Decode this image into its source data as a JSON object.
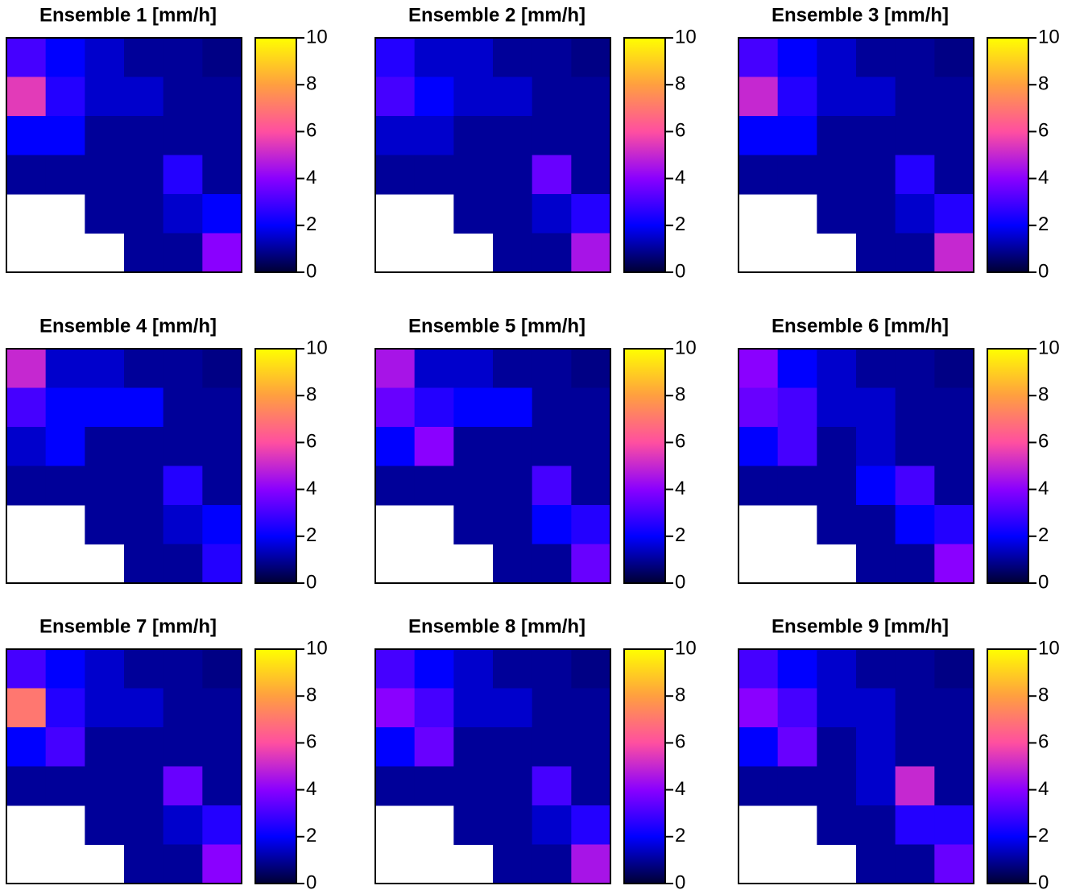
{
  "colormap": [
    "#000033",
    "#0000ff",
    "#8a00ff",
    "#ff4fa0",
    "#ff9f40",
    "#ffff00"
  ],
  "chart_data": [
    {
      "type": "heatmap",
      "title": "Ensemble 1 [mm/h]",
      "zlim": [
        0,
        10
      ],
      "zticks": [
        0,
        2,
        4,
        6,
        8,
        10
      ],
      "z": [
        [
          3,
          2,
          1.5,
          1,
          1,
          0.8
        ],
        [
          5.5,
          2.5,
          1.5,
          1.5,
          1,
          1
        ],
        [
          2,
          2,
          1,
          1,
          1,
          1
        ],
        [
          1,
          1,
          1,
          1,
          2.5,
          1
        ],
        [
          null,
          null,
          1,
          1,
          1.5,
          2
        ],
        [
          null,
          null,
          null,
          1,
          1,
          4
        ]
      ]
    },
    {
      "type": "heatmap",
      "title": "Ensemble 2 [mm/h]",
      "zlim": [
        0,
        10
      ],
      "zticks": [
        0,
        2,
        4,
        6,
        8,
        10
      ],
      "z": [
        [
          2.5,
          1.5,
          1.5,
          1,
          1,
          0.8
        ],
        [
          3,
          2,
          1.5,
          1.5,
          1,
          1
        ],
        [
          1.5,
          1.5,
          1,
          1,
          1,
          1
        ],
        [
          1,
          1,
          1,
          1,
          3.5,
          1
        ],
        [
          null,
          null,
          1,
          1,
          1.5,
          2.5
        ],
        [
          null,
          null,
          null,
          1,
          1,
          4.5
        ]
      ]
    },
    {
      "type": "heatmap",
      "title": "Ensemble 3 [mm/h]",
      "zlim": [
        0,
        10
      ],
      "zticks": [
        0,
        2,
        4,
        6,
        8,
        10
      ],
      "z": [
        [
          3,
          2,
          1.5,
          1,
          1,
          0.8
        ],
        [
          5,
          2.5,
          1.5,
          1.5,
          1,
          1
        ],
        [
          2,
          2,
          1,
          1,
          1,
          1
        ],
        [
          1,
          1,
          1,
          1,
          2.5,
          1
        ],
        [
          null,
          null,
          1,
          1,
          1.5,
          2.5
        ],
        [
          null,
          null,
          null,
          1,
          1,
          5
        ]
      ]
    },
    {
      "type": "heatmap",
      "title": "Ensemble 4 [mm/h]",
      "zlim": [
        0,
        10
      ],
      "zticks": [
        0,
        2,
        4,
        6,
        8,
        10
      ],
      "z": [
        [
          5,
          1.5,
          1.5,
          1,
          1,
          0.8
        ],
        [
          3,
          2,
          2,
          2,
          1,
          1
        ],
        [
          1.5,
          2,
          1,
          1,
          1,
          1
        ],
        [
          1,
          1,
          1,
          1,
          2.5,
          1
        ],
        [
          null,
          null,
          1,
          1,
          1.5,
          2
        ],
        [
          null,
          null,
          null,
          1,
          1,
          2.5
        ]
      ]
    },
    {
      "type": "heatmap",
      "title": "Ensemble 5 [mm/h]",
      "zlim": [
        0,
        10
      ],
      "zticks": [
        0,
        2,
        4,
        6,
        8,
        10
      ],
      "z": [
        [
          4.5,
          1.5,
          1.5,
          1,
          1,
          0.8
        ],
        [
          3.5,
          2.5,
          2,
          2,
          1,
          1
        ],
        [
          2,
          4,
          1,
          1,
          1,
          1
        ],
        [
          1,
          1,
          1,
          1,
          3,
          1
        ],
        [
          null,
          null,
          1,
          1,
          2,
          2.5
        ],
        [
          null,
          null,
          null,
          1,
          1,
          3.5
        ]
      ]
    },
    {
      "type": "heatmap",
      "title": "Ensemble 6 [mm/h]",
      "zlim": [
        0,
        10
      ],
      "zticks": [
        0,
        2,
        4,
        6,
        8,
        10
      ],
      "z": [
        [
          4,
          2,
          1.5,
          1,
          1,
          0.8
        ],
        [
          3.5,
          3,
          1.5,
          1.5,
          1,
          1
        ],
        [
          2,
          3,
          1,
          1.5,
          1,
          1
        ],
        [
          1,
          1,
          1,
          2,
          3,
          1
        ],
        [
          null,
          null,
          1,
          1,
          2,
          2.5
        ],
        [
          null,
          null,
          null,
          1,
          1,
          4
        ]
      ]
    },
    {
      "type": "heatmap",
      "title": "Ensemble 7 [mm/h]",
      "zlim": [
        0,
        10
      ],
      "zticks": [
        0,
        2,
        4,
        6,
        8,
        10
      ],
      "z": [
        [
          3,
          2,
          1.5,
          1,
          1,
          0.8
        ],
        [
          7,
          2.5,
          1.5,
          1.5,
          1,
          1
        ],
        [
          2,
          3,
          1,
          1,
          1,
          1
        ],
        [
          1,
          1,
          1,
          1,
          3.5,
          1
        ],
        [
          null,
          null,
          1,
          1,
          1.5,
          2.5
        ],
        [
          null,
          null,
          null,
          1,
          1,
          4
        ]
      ]
    },
    {
      "type": "heatmap",
      "title": "Ensemble 8 [mm/h]",
      "zlim": [
        0,
        10
      ],
      "zticks": [
        0,
        2,
        4,
        6,
        8,
        10
      ],
      "z": [
        [
          3,
          2,
          1.5,
          1,
          1,
          0.8
        ],
        [
          4,
          3,
          1.5,
          1.5,
          1,
          1
        ],
        [
          2,
          3.5,
          1,
          1,
          1,
          1
        ],
        [
          1,
          1,
          1,
          1,
          3,
          1
        ],
        [
          null,
          null,
          1,
          1,
          1.5,
          2.5
        ],
        [
          null,
          null,
          null,
          1,
          1,
          4.5
        ]
      ]
    },
    {
      "type": "heatmap",
      "title": "Ensemble 9 [mm/h]",
      "zlim": [
        0,
        10
      ],
      "zticks": [
        0,
        2,
        4,
        6,
        8,
        10
      ],
      "z": [
        [
          3,
          2,
          1.5,
          1,
          1,
          0.8
        ],
        [
          4,
          3,
          1.5,
          1.5,
          1,
          1
        ],
        [
          2,
          3.5,
          1,
          1.5,
          1,
          1
        ],
        [
          1,
          1,
          1,
          1.5,
          5,
          1
        ],
        [
          null,
          null,
          1,
          1,
          2.5,
          2.5
        ],
        [
          null,
          null,
          null,
          1,
          1,
          3.5
        ]
      ]
    }
  ]
}
